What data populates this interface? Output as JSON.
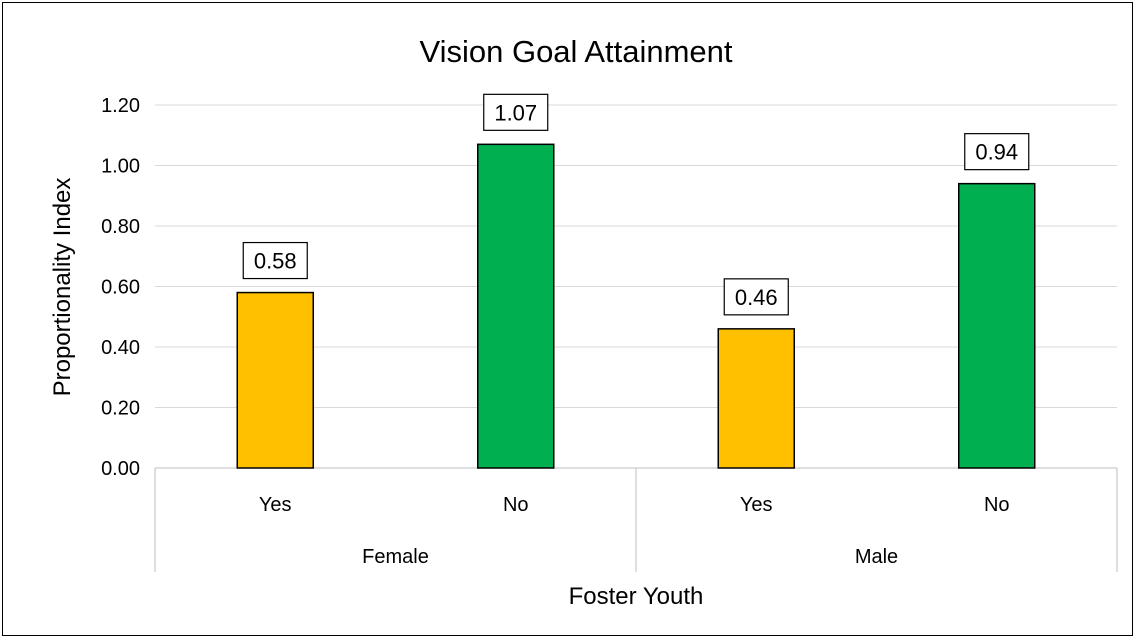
{
  "chart_data": {
    "type": "bar",
    "title": "Vision Goal Attainment",
    "xlabel": "Foster Youth",
    "ylabel": "Proportionality Index",
    "ylim": [
      0,
      1.2
    ],
    "ytick_labels": [
      "0.00",
      "0.20",
      "0.40",
      "0.60",
      "0.80",
      "1.00",
      "1.20"
    ],
    "grid": true,
    "groups": [
      {
        "label": "Female",
        "bars": [
          {
            "category": "Yes",
            "value": 0.58,
            "label": "0.58",
            "color": "#FFC000"
          },
          {
            "category": "No",
            "value": 1.07,
            "label": "1.07",
            "color": "#00B050"
          }
        ]
      },
      {
        "label": "Male",
        "bars": [
          {
            "category": "Yes",
            "value": 0.46,
            "label": "0.46",
            "color": "#FFC000"
          },
          {
            "category": "No",
            "value": 0.94,
            "label": "0.94",
            "color": "#00B050"
          }
        ]
      }
    ]
  }
}
